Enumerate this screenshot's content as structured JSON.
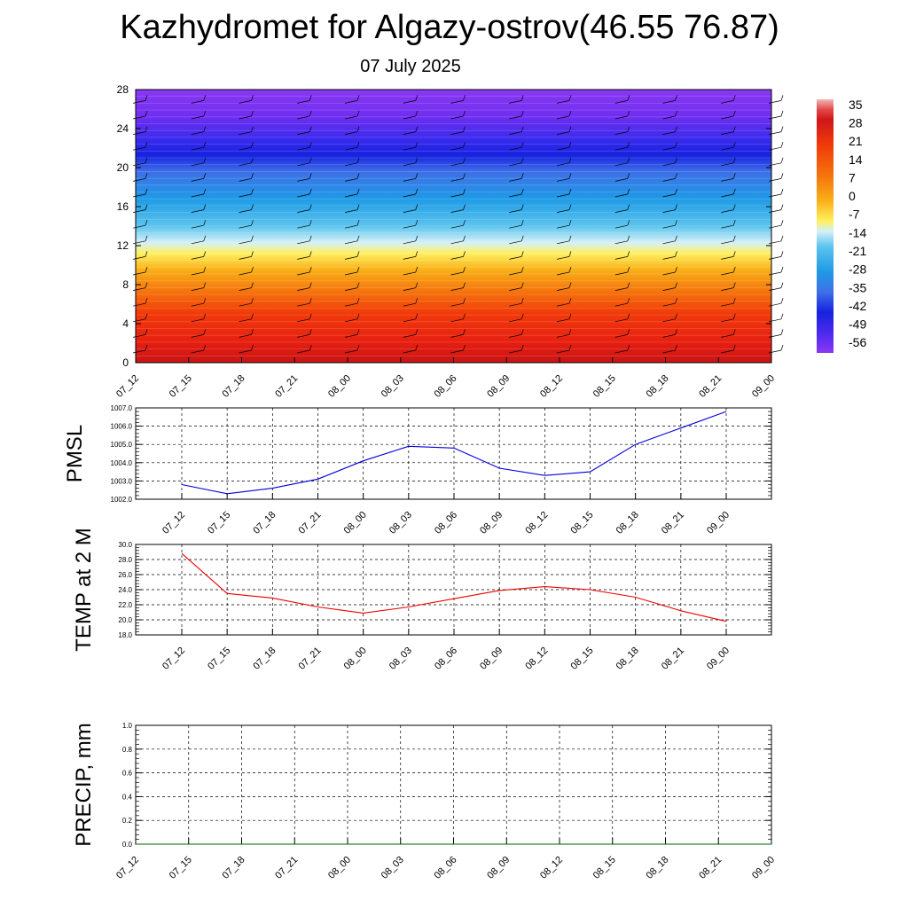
{
  "title": "Kazhydromet for Algazy-ostrov(46.55 76.87)",
  "subtitle": "07 July 2025",
  "colors": {
    "pmsl_line": "#0000dd",
    "temp_line": "#ee0000",
    "precip_line": "#006400",
    "grid": "#000000"
  },
  "chart_data": [
    {
      "type": "heatmap",
      "description_source": "time-height section",
      "x": [
        "07_12",
        "07_15",
        "07_18",
        "07_21",
        "08_00",
        "08_03",
        "08_06",
        "08_09",
        "08_12",
        "08_15",
        "08_18",
        "08_21",
        "09_00"
      ],
      "ylim": [
        0,
        28
      ],
      "y_ticks": [
        0,
        4,
        8,
        12,
        16,
        20,
        24,
        28
      ],
      "colorbar": {
        "ticks": [
          35,
          28,
          21,
          14,
          7,
          0,
          -7,
          -14,
          -21,
          -28,
          -35,
          -42,
          -49,
          -56
        ],
        "range": [
          -60,
          37
        ]
      },
      "wind_barbs": true
    },
    {
      "type": "line",
      "ylabel": "PMSL",
      "x": [
        "07_12",
        "07_15",
        "07_18",
        "07_21",
        "08_00",
        "08_03",
        "08_06",
        "08_09",
        "08_12",
        "08_15",
        "08_18",
        "08_21",
        "09_00"
      ],
      "y": [
        1002.8,
        1002.3,
        1002.6,
        1003.1,
        1004.1,
        1004.9,
        1004.8,
        1003.7,
        1003.3,
        1003.5,
        1005.0,
        1005.9,
        1006.8
      ],
      "ylim": [
        1002.0,
        1007.0
      ],
      "y_ticks": [
        "1002.0",
        "1003.0",
        "1004.0",
        "1005.0",
        "1006.0",
        "1007.0"
      ],
      "grid": true
    },
    {
      "type": "line",
      "ylabel": "TEMP at 2 M",
      "x": [
        "07_12",
        "07_15",
        "07_18",
        "07_21",
        "08_00",
        "08_03",
        "08_06",
        "08_09",
        "08_12",
        "08_15",
        "08_18",
        "08_21",
        "09_00"
      ],
      "y": [
        28.8,
        23.5,
        22.9,
        21.7,
        20.9,
        21.7,
        22.8,
        23.9,
        24.4,
        24.0,
        23.0,
        21.2,
        19.8
      ],
      "ylim": [
        18.0,
        30.0
      ],
      "y_ticks": [
        "18.0",
        "20.0",
        "22.0",
        "24.0",
        "26.0",
        "28.0",
        "30.0"
      ],
      "grid": true
    },
    {
      "type": "line",
      "ylabel": "PRECIP, mm",
      "x": [
        "07_12",
        "07_15",
        "07_18",
        "07_21",
        "08_00",
        "08_03",
        "08_06",
        "08_09",
        "08_12",
        "08_15",
        "08_18",
        "08_21",
        "09_00"
      ],
      "y": [
        0,
        0,
        0,
        0,
        0,
        0,
        0,
        0,
        0,
        0,
        0,
        0,
        0
      ],
      "ylim": [
        0.0,
        1.0
      ],
      "y_ticks": [
        "0.0",
        "0.2",
        "0.4",
        "0.6",
        "0.8",
        "1.0"
      ],
      "grid": true
    }
  ]
}
